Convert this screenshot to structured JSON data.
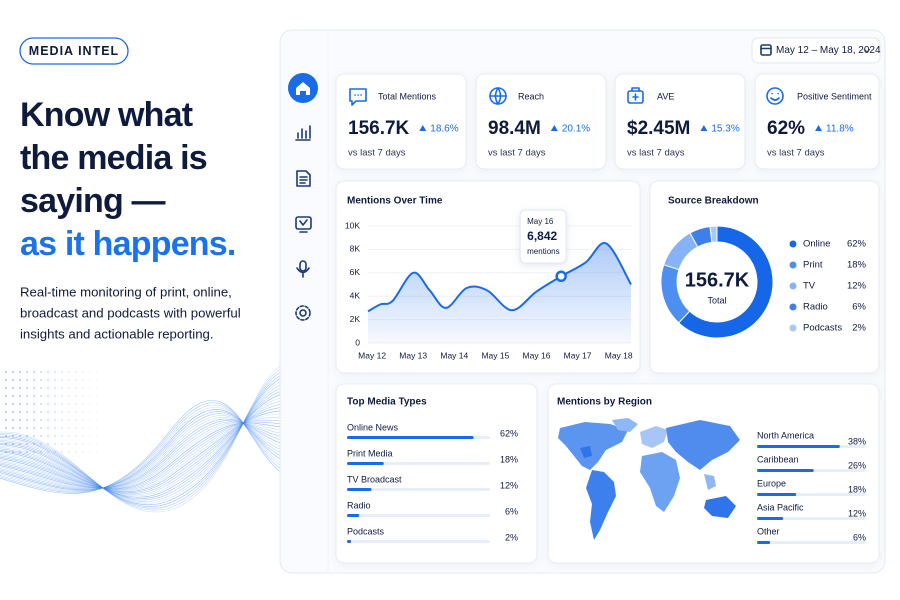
{
  "brand": "MEDIA INTEL",
  "headline": [
    "Know what",
    "the media is",
    "saying —",
    "as it happens."
  ],
  "description": [
    "Real-time monitoring of print, online,",
    "broadcast and podcasts with powerful",
    "insights and actionable reporting."
  ],
  "date_range": "May 12 – May 18, 2024",
  "kpis": [
    {
      "label": "Total Mentions",
      "value": "156.7K",
      "change": "18.6%",
      "note": "vs last 7 days"
    },
    {
      "label": "Reach",
      "value": "98.4M",
      "change": "20.1%",
      "note": "vs last 7 days"
    },
    {
      "label": "AVE",
      "value": "$2.45M",
      "change": "15.3%",
      "note": "vs last 7 days"
    },
    {
      "label": "Positive Sentiment",
      "value": "62%",
      "change": "11.8%",
      "note": "vs last 7 days"
    }
  ],
  "mentions_over_time": {
    "type": "line",
    "title": "Mentions Over Time",
    "x": [
      11.9,
      12.2,
      12.5,
      13,
      13.4,
      13.8,
      14.3,
      14.8,
      15.4,
      16,
      16.6,
      17.2,
      17.7,
      18.3
    ],
    "values": [
      2700,
      3300,
      3600,
      6000,
      4500,
      3000,
      4700,
      4500,
      2800,
      4400,
      5700,
      6900,
      8500,
      5000
    ],
    "xlim": [
      11.9,
      18.3
    ],
    "xticks": [
      {
        "value": 12,
        "label": "May 12"
      },
      {
        "value": 13,
        "label": "May 13"
      },
      {
        "value": 14,
        "label": "May 14"
      },
      {
        "value": 15,
        "label": "May 15"
      },
      {
        "value": 16,
        "label": "May 16"
      },
      {
        "value": 17,
        "label": "May 17"
      },
      {
        "value": 18,
        "label": "May 18"
      }
    ],
    "ylim": [
      0,
      10000
    ],
    "yticks": [
      0,
      {
        "value": 2000,
        "label": "2K"
      },
      {
        "value": 4000,
        "label": "4K"
      },
      {
        "value": 6000,
        "label": "6K"
      },
      {
        "value": 8000,
        "label": "8K"
      },
      {
        "value": 10000,
        "label": "10K"
      }
    ],
    "color": "#1a6be8",
    "tooltip": {
      "date": "May 16",
      "value": "6,842",
      "unit": "mentions"
    }
  },
  "source_breakdown": {
    "type": "pie",
    "title": "Source Breakdown",
    "total": "156.7K",
    "total_caption": "Total",
    "categories": [
      "Online",
      "Print",
      "TV",
      "Radio",
      "Podcasts"
    ],
    "values": [
      62,
      18,
      12,
      6,
      2
    ],
    "value_labels": [
      "62%",
      "18%",
      "12%",
      "6%",
      "2%"
    ],
    "colors": [
      "#1666e8",
      "#4d8ff0",
      "#86b2f6",
      "#3d7fec",
      "#a8c8f8"
    ]
  },
  "top_media_types": {
    "type": "bar",
    "title": "Top Media Types",
    "categories": [
      "Online News",
      "Print Media",
      "TV Broadcast",
      "Radio",
      "Podcasts"
    ],
    "values": [
      62,
      18,
      12,
      6,
      2
    ],
    "value_labels": [
      "62%",
      "18%",
      "12%",
      "6%",
      "2%"
    ],
    "color": "#1a6be8"
  },
  "mentions_by_region": {
    "type": "bar",
    "title": "Mentions by Region",
    "categories": [
      "North America",
      "Caribbean",
      "Europe",
      "Asia Pacific",
      "Other"
    ],
    "values": [
      38,
      26,
      18,
      12,
      6
    ],
    "value_labels": [
      "38%",
      "26%",
      "18%",
      "12%",
      "6%"
    ],
    "color": "#1a6be8"
  }
}
